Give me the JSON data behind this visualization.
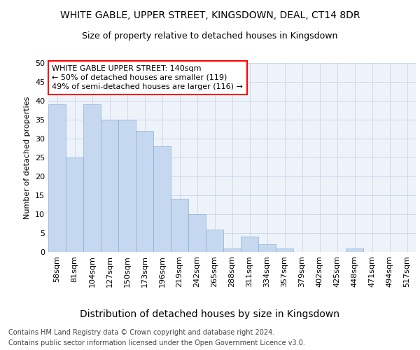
{
  "title": "WHITE GABLE, UPPER STREET, KINGSDOWN, DEAL, CT14 8DR",
  "subtitle": "Size of property relative to detached houses in Kingsdown",
  "xlabel": "Distribution of detached houses by size in Kingsdown",
  "ylabel": "Number of detached properties",
  "categories": [
    "58sqm",
    "81sqm",
    "104sqm",
    "127sqm",
    "150sqm",
    "173sqm",
    "196sqm",
    "219sqm",
    "242sqm",
    "265sqm",
    "288sqm",
    "311sqm",
    "334sqm",
    "357sqm",
    "379sqm",
    "402sqm",
    "425sqm",
    "448sqm",
    "471sqm",
    "494sqm",
    "517sqm"
  ],
  "values": [
    39,
    25,
    39,
    35,
    35,
    32,
    28,
    14,
    10,
    6,
    1,
    4,
    2,
    1,
    0,
    0,
    0,
    1,
    0,
    0,
    0
  ],
  "bar_color": "#c5d8f0",
  "bar_edge_color": "#8ab0d8",
  "annotation_line1": "WHITE GABLE UPPER STREET: 140sqm",
  "annotation_line2": "← 50% of detached houses are smaller (119)",
  "annotation_line3": "49% of semi-detached houses are larger (116) →",
  "ylim": [
    0,
    50
  ],
  "yticks": [
    0,
    5,
    10,
    15,
    20,
    25,
    30,
    35,
    40,
    45,
    50
  ],
  "footer_line1": "Contains HM Land Registry data © Crown copyright and database right 2024.",
  "footer_line2": "Contains public sector information licensed under the Open Government Licence v3.0.",
  "background_color": "#ffffff",
  "plot_bg_color": "#eef3fa",
  "grid_color": "#c8d4e8",
  "title_fontsize": 10,
  "subtitle_fontsize": 9,
  "xlabel_fontsize": 10,
  "ylabel_fontsize": 8,
  "tick_fontsize": 8,
  "annotation_fontsize": 8,
  "footer_fontsize": 7
}
